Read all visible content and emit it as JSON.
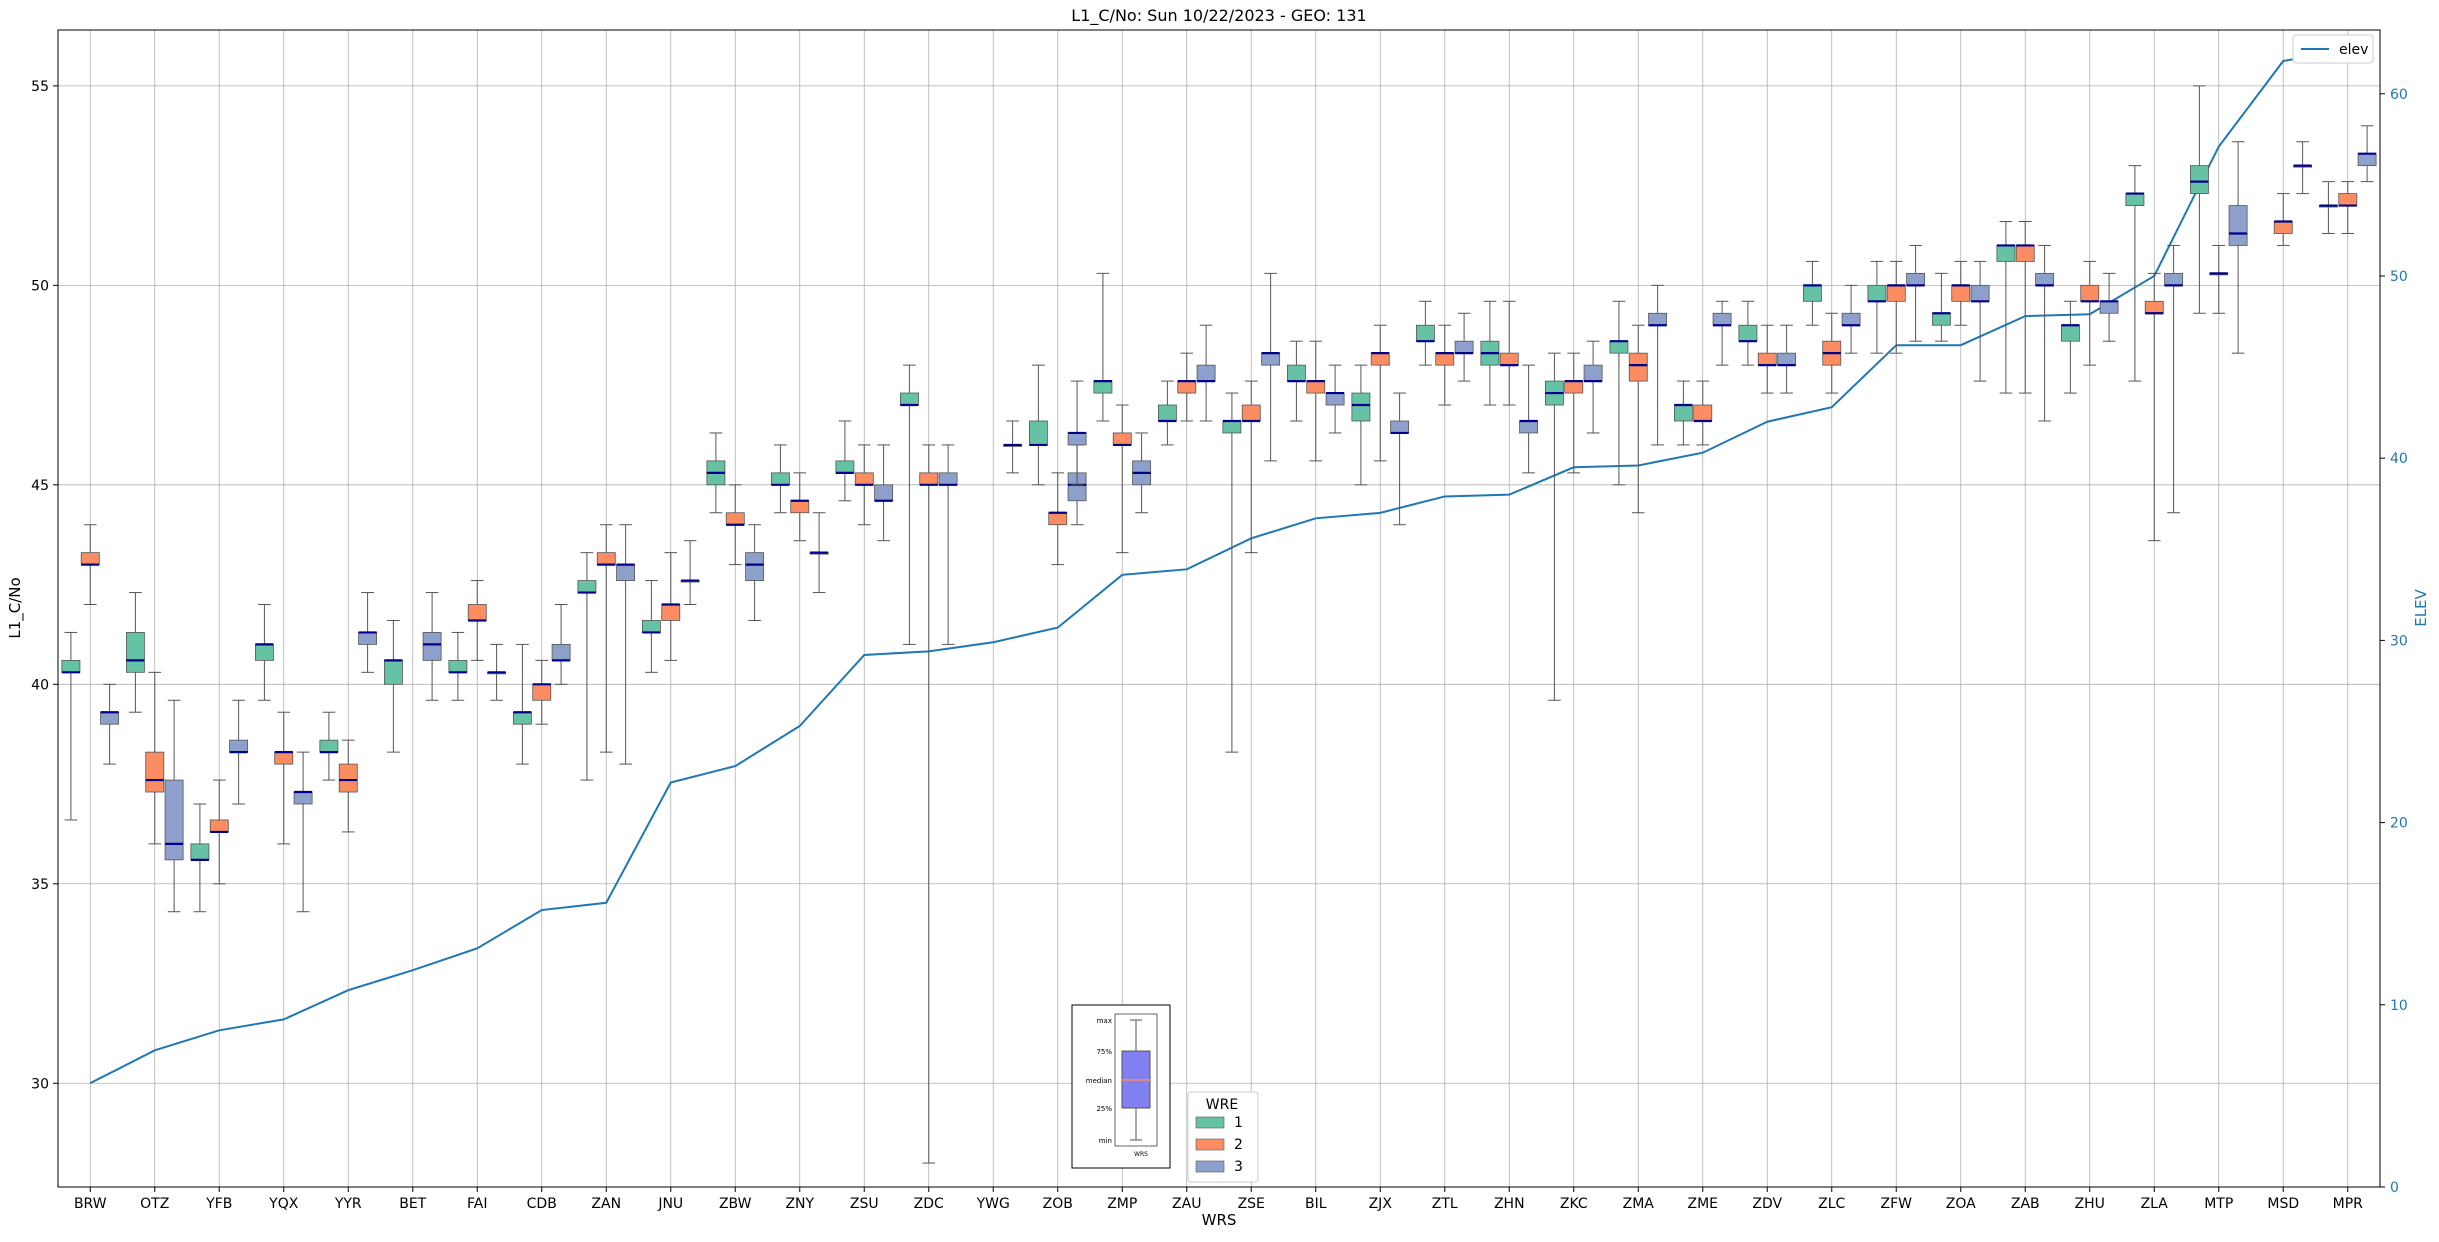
{
  "chart_data": {
    "type": "box",
    "title": "L1_C/No: Sun 10/22/2023 - GEO: 131",
    "xlabel": "WRS",
    "ylabel": "L1_C/No",
    "y2label": "ELEV",
    "ylim": [
      27.4,
      56.4
    ],
    "y2lim": [
      0,
      63.5
    ],
    "yticks": [
      30,
      35,
      40,
      45,
      50,
      55
    ],
    "y2ticks": [
      0,
      10,
      20,
      30,
      40,
      50,
      60
    ],
    "grid": true,
    "categories": [
      "BRW",
      "OTZ",
      "YFB",
      "YQX",
      "YYR",
      "BET",
      "FAI",
      "CDB",
      "ZAN",
      "JNU",
      "ZBW",
      "ZNY",
      "ZSU",
      "ZDC",
      "YWG",
      "ZOB",
      "ZMP",
      "ZAU",
      "ZSE",
      "BIL",
      "ZJX",
      "ZTL",
      "ZHN",
      "ZKC",
      "ZMA",
      "ZME",
      "ZDV",
      "ZLC",
      "ZFW",
      "ZOA",
      "ZAB",
      "ZHU",
      "ZLA",
      "MTP",
      "MSD",
      "MPR"
    ],
    "legend_wre": {
      "title": "WRE",
      "placement": "bottom-center",
      "entries": [
        "1",
        "2",
        "3"
      ]
    },
    "legend_elev": {
      "placement": "top-right",
      "entries": [
        "elev"
      ]
    },
    "series_colors": {
      "1": "#66c2a5",
      "2": "#fc8d62",
      "3": "#8da0cb",
      "elev": "#1f77b4",
      "median": "#00008b"
    },
    "boxes": [
      {
        "cat": "BRW",
        "wre": 1,
        "min": 36.6,
        "q1": 40.3,
        "med": 40.3,
        "q3": 40.6,
        "max": 41.3
      },
      {
        "cat": "BRW",
        "wre": 2,
        "min": 42.0,
        "q1": 43.0,
        "med": 43.0,
        "q3": 43.3,
        "max": 44.0
      },
      {
        "cat": "BRW",
        "wre": 3,
        "min": 38.0,
        "q1": 39.0,
        "med": 39.3,
        "q3": 39.3,
        "max": 40.0
      },
      {
        "cat": "OTZ",
        "wre": 1,
        "min": 39.3,
        "q1": 40.3,
        "med": 40.6,
        "q3": 41.3,
        "max": 42.3
      },
      {
        "cat": "OTZ",
        "wre": 2,
        "min": 36.0,
        "q1": 37.3,
        "med": 37.6,
        "q3": 38.3,
        "max": 40.3
      },
      {
        "cat": "OTZ",
        "wre": 3,
        "min": 34.3,
        "q1": 35.6,
        "med": 36.0,
        "q3": 37.6,
        "max": 39.6
      },
      {
        "cat": "YFB",
        "wre": 1,
        "min": 34.3,
        "q1": 35.6,
        "med": 35.6,
        "q3": 36.0,
        "max": 37.0
      },
      {
        "cat": "YFB",
        "wre": 2,
        "min": 35.0,
        "q1": 36.3,
        "med": 36.3,
        "q3": 36.6,
        "max": 37.6
      },
      {
        "cat": "YFB",
        "wre": 3,
        "min": 37.0,
        "q1": 38.3,
        "med": 38.3,
        "q3": 38.6,
        "max": 39.6
      },
      {
        "cat": "YQX",
        "wre": 1,
        "min": 39.6,
        "q1": 40.6,
        "med": 41.0,
        "q3": 41.0,
        "max": 42.0
      },
      {
        "cat": "YQX",
        "wre": 2,
        "min": 36.0,
        "q1": 38.0,
        "med": 38.3,
        "q3": 38.3,
        "max": 39.3
      },
      {
        "cat": "YQX",
        "wre": 3,
        "min": 34.3,
        "q1": 37.0,
        "med": 37.3,
        "q3": 37.3,
        "max": 38.3
      },
      {
        "cat": "YYR",
        "wre": 1,
        "min": 37.6,
        "q1": 38.3,
        "med": 38.3,
        "q3": 38.6,
        "max": 39.3
      },
      {
        "cat": "YYR",
        "wre": 2,
        "min": 36.3,
        "q1": 37.3,
        "med": 37.6,
        "q3": 38.0,
        "max": 38.6
      },
      {
        "cat": "YYR",
        "wre": 3,
        "min": 40.3,
        "q1": 41.0,
        "med": 41.3,
        "q3": 41.3,
        "max": 42.3
      },
      {
        "cat": "BET",
        "wre": 1,
        "min": 38.3,
        "q1": 40.0,
        "med": 40.6,
        "q3": 40.6,
        "max": 41.6
      },
      {
        "cat": "BET",
        "wre": 3,
        "min": 39.6,
        "q1": 40.6,
        "med": 41.0,
        "q3": 41.3,
        "max": 42.3
      },
      {
        "cat": "FAI",
        "wre": 1,
        "min": 39.6,
        "q1": 40.3,
        "med": 40.3,
        "q3": 40.6,
        "max": 41.3
      },
      {
        "cat": "FAI",
        "wre": 2,
        "min": 40.6,
        "q1": 41.6,
        "med": 41.6,
        "q3": 42.0,
        "max": 42.6
      },
      {
        "cat": "FAI",
        "wre": 3,
        "min": 39.6,
        "q1": 40.3,
        "med": 40.3,
        "q3": 40.3,
        "max": 41.0
      },
      {
        "cat": "CDB",
        "wre": 1,
        "min": 38.0,
        "q1": 39.0,
        "med": 39.3,
        "q3": 39.3,
        "max": 41.0
      },
      {
        "cat": "CDB",
        "wre": 2,
        "min": 39.0,
        "q1": 39.6,
        "med": 40.0,
        "q3": 40.0,
        "max": 40.6
      },
      {
        "cat": "CDB",
        "wre": 3,
        "min": 40.0,
        "q1": 40.6,
        "med": 40.6,
        "q3": 41.0,
        "max": 42.0
      },
      {
        "cat": "ZAN",
        "wre": 1,
        "min": 37.6,
        "q1": 42.3,
        "med": 42.3,
        "q3": 42.6,
        "max": 43.3
      },
      {
        "cat": "ZAN",
        "wre": 2,
        "min": 38.3,
        "q1": 43.0,
        "med": 43.0,
        "q3": 43.3,
        "max": 44.0
      },
      {
        "cat": "ZAN",
        "wre": 3,
        "min": 38.0,
        "q1": 42.6,
        "med": 43.0,
        "q3": 43.0,
        "max": 44.0
      },
      {
        "cat": "JNU",
        "wre": 1,
        "min": 40.3,
        "q1": 41.3,
        "med": 41.3,
        "q3": 41.6,
        "max": 42.6
      },
      {
        "cat": "JNU",
        "wre": 2,
        "min": 40.6,
        "q1": 41.6,
        "med": 42.0,
        "q3": 42.0,
        "max": 43.3
      },
      {
        "cat": "JNU",
        "wre": 3,
        "min": 42.0,
        "q1": 42.6,
        "med": 42.6,
        "q3": 42.6,
        "max": 43.6
      },
      {
        "cat": "ZBW",
        "wre": 1,
        "min": 44.3,
        "q1": 45.0,
        "med": 45.3,
        "q3": 45.6,
        "max": 46.3
      },
      {
        "cat": "ZBW",
        "wre": 2,
        "min": 43.0,
        "q1": 44.0,
        "med": 44.0,
        "q3": 44.3,
        "max": 45.0
      },
      {
        "cat": "ZBW",
        "wre": 3,
        "min": 41.6,
        "q1": 42.6,
        "med": 43.0,
        "q3": 43.3,
        "max": 44.0
      },
      {
        "cat": "ZNY",
        "wre": 1,
        "min": 44.3,
        "q1": 45.0,
        "med": 45.0,
        "q3": 45.3,
        "max": 46.0
      },
      {
        "cat": "ZNY",
        "wre": 2,
        "min": 43.6,
        "q1": 44.3,
        "med": 44.6,
        "q3": 44.6,
        "max": 45.3
      },
      {
        "cat": "ZNY",
        "wre": 3,
        "min": 42.3,
        "q1": 43.3,
        "med": 43.3,
        "q3": 43.3,
        "max": 44.3
      },
      {
        "cat": "ZSU",
        "wre": 1,
        "min": 44.6,
        "q1": 45.3,
        "med": 45.3,
        "q3": 45.6,
        "max": 46.6
      },
      {
        "cat": "ZSU",
        "wre": 2,
        "min": 44.0,
        "q1": 45.0,
        "med": 45.0,
        "q3": 45.3,
        "max": 46.0
      },
      {
        "cat": "ZSU",
        "wre": 3,
        "min": 43.6,
        "q1": 44.6,
        "med": 44.6,
        "q3": 45.0,
        "max": 46.0
      },
      {
        "cat": "ZDC",
        "wre": 1,
        "min": 41.0,
        "q1": 47.0,
        "med": 47.0,
        "q3": 47.3,
        "max": 48.0
      },
      {
        "cat": "ZDC",
        "wre": 2,
        "min": 28.0,
        "q1": 45.0,
        "med": 45.0,
        "q3": 45.3,
        "max": 46.0
      },
      {
        "cat": "ZDC",
        "wre": 3,
        "min": 41.0,
        "q1": 45.0,
        "med": 45.0,
        "q3": 45.3,
        "max": 46.0
      },
      {
        "cat": "YWG",
        "wre": 3,
        "min": 45.3,
        "q1": 46.0,
        "med": 46.0,
        "q3": 46.0,
        "max": 46.6
      },
      {
        "cat": "ZOB",
        "wre": 1,
        "min": 45.0,
        "q1": 46.0,
        "med": 46.0,
        "q3": 46.6,
        "max": 48.0
      },
      {
        "cat": "ZOB",
        "wre": 2,
        "min": 43.0,
        "q1": 44.0,
        "med": 44.3,
        "q3": 44.3,
        "max": 45.3
      },
      {
        "cat": "ZOB",
        "wre": 3,
        "min": 44.0,
        "q1": 44.6,
        "med": 45.0,
        "q3": 45.3,
        "max": 46.0
      },
      {
        "cat": "ZOB",
        "wre": 3,
        "min": 45.0,
        "q1": 46.0,
        "med": 46.3,
        "q3": 46.3,
        "max": 47.6
      },
      {
        "cat": "ZMP",
        "wre": 1,
        "min": 46.6,
        "q1": 47.3,
        "med": 47.6,
        "q3": 47.6,
        "max": 50.3
      },
      {
        "cat": "ZMP",
        "wre": 2,
        "min": 43.3,
        "q1": 46.0,
        "med": 46.0,
        "q3": 46.3,
        "max": 47.0
      },
      {
        "cat": "ZMP",
        "wre": 3,
        "min": 44.3,
        "q1": 45.0,
        "med": 45.3,
        "q3": 45.6,
        "max": 46.3
      },
      {
        "cat": "ZAU",
        "wre": 1,
        "min": 46.0,
        "q1": 46.6,
        "med": 46.6,
        "q3": 47.0,
        "max": 47.6
      },
      {
        "cat": "ZAU",
        "wre": 2,
        "min": 46.6,
        "q1": 47.3,
        "med": 47.6,
        "q3": 47.6,
        "max": 48.3
      },
      {
        "cat": "ZAU",
        "wre": 3,
        "min": 46.6,
        "q1": 47.6,
        "med": 47.6,
        "q3": 48.0,
        "max": 49.0
      },
      {
        "cat": "ZSE",
        "wre": 1,
        "min": 38.3,
        "q1": 46.3,
        "med": 46.6,
        "q3": 46.6,
        "max": 47.3
      },
      {
        "cat": "ZSE",
        "wre": 2,
        "min": 43.3,
        "q1": 46.6,
        "med": 46.6,
        "q3": 47.0,
        "max": 47.6
      },
      {
        "cat": "ZSE",
        "wre": 3,
        "min": 45.6,
        "q1": 48.0,
        "med": 48.3,
        "q3": 48.3,
        "max": 50.3
      },
      {
        "cat": "BIL",
        "wre": 1,
        "min": 46.6,
        "q1": 47.6,
        "med": 47.6,
        "q3": 48.0,
        "max": 48.6
      },
      {
        "cat": "BIL",
        "wre": 2,
        "min": 45.6,
        "q1": 47.3,
        "med": 47.6,
        "q3": 47.6,
        "max": 48.6
      },
      {
        "cat": "BIL",
        "wre": 3,
        "min": 46.3,
        "q1": 47.0,
        "med": 47.3,
        "q3": 47.3,
        "max": 48.0
      },
      {
        "cat": "ZJX",
        "wre": 1,
        "min": 45.0,
        "q1": 46.6,
        "med": 47.0,
        "q3": 47.3,
        "max": 48.0
      },
      {
        "cat": "ZJX",
        "wre": 2,
        "min": 45.6,
        "q1": 48.0,
        "med": 48.3,
        "q3": 48.3,
        "max": 49.0
      },
      {
        "cat": "ZJX",
        "wre": 3,
        "min": 44.0,
        "q1": 46.3,
        "med": 46.3,
        "q3": 46.6,
        "max": 47.3
      },
      {
        "cat": "ZTL",
        "wre": 1,
        "min": 48.0,
        "q1": 48.6,
        "med": 48.6,
        "q3": 49.0,
        "max": 49.6
      },
      {
        "cat": "ZTL",
        "wre": 2,
        "min": 47.0,
        "q1": 48.0,
        "med": 48.3,
        "q3": 48.3,
        "max": 49.0
      },
      {
        "cat": "ZTL",
        "wre": 3,
        "min": 47.6,
        "q1": 48.3,
        "med": 48.3,
        "q3": 48.6,
        "max": 49.3
      },
      {
        "cat": "ZHN",
        "wre": 1,
        "min": 47.0,
        "q1": 48.0,
        "med": 48.3,
        "q3": 48.6,
        "max": 49.6
      },
      {
        "cat": "ZHN",
        "wre": 2,
        "min": 47.0,
        "q1": 48.0,
        "med": 48.0,
        "q3": 48.3,
        "max": 49.6
      },
      {
        "cat": "ZHN",
        "wre": 3,
        "min": 45.3,
        "q1": 46.3,
        "med": 46.6,
        "q3": 46.6,
        "max": 48.0
      },
      {
        "cat": "ZKC",
        "wre": 1,
        "min": 39.6,
        "q1": 47.0,
        "med": 47.3,
        "q3": 47.6,
        "max": 48.3
      },
      {
        "cat": "ZKC",
        "wre": 2,
        "min": 45.3,
        "q1": 47.3,
        "med": 47.6,
        "q3": 47.6,
        "max": 48.3
      },
      {
        "cat": "ZKC",
        "wre": 3,
        "min": 46.3,
        "q1": 47.6,
        "med": 47.6,
        "q3": 48.0,
        "max": 48.6
      },
      {
        "cat": "ZMA",
        "wre": 1,
        "min": 45.0,
        "q1": 48.3,
        "med": 48.6,
        "q3": 48.6,
        "max": 49.6
      },
      {
        "cat": "ZMA",
        "wre": 2,
        "min": 44.3,
        "q1": 47.6,
        "med": 48.0,
        "q3": 48.3,
        "max": 49.0
      },
      {
        "cat": "ZMA",
        "wre": 3,
        "min": 46.0,
        "q1": 49.0,
        "med": 49.0,
        "q3": 49.3,
        "max": 50.0
      },
      {
        "cat": "ZME",
        "wre": 1,
        "min": 46.0,
        "q1": 46.6,
        "med": 47.0,
        "q3": 47.0,
        "max": 47.6
      },
      {
        "cat": "ZME",
        "wre": 2,
        "min": 46.0,
        "q1": 46.6,
        "med": 46.6,
        "q3": 47.0,
        "max": 47.6
      },
      {
        "cat": "ZME",
        "wre": 3,
        "min": 48.0,
        "q1": 49.0,
        "med": 49.0,
        "q3": 49.3,
        "max": 49.6
      },
      {
        "cat": "ZDV",
        "wre": 1,
        "min": 48.0,
        "q1": 48.6,
        "med": 48.6,
        "q3": 49.0,
        "max": 49.6
      },
      {
        "cat": "ZDV",
        "wre": 2,
        "min": 47.3,
        "q1": 48.0,
        "med": 48.0,
        "q3": 48.3,
        "max": 49.0
      },
      {
        "cat": "ZDV",
        "wre": 3,
        "min": 47.3,
        "q1": 48.0,
        "med": 48.0,
        "q3": 48.3,
        "max": 49.0
      },
      {
        "cat": "ZLC",
        "wre": 1,
        "min": 49.0,
        "q1": 49.6,
        "med": 50.0,
        "q3": 50.0,
        "max": 50.6
      },
      {
        "cat": "ZLC",
        "wre": 2,
        "min": 47.3,
        "q1": 48.0,
        "med": 48.3,
        "q3": 48.6,
        "max": 49.3
      },
      {
        "cat": "ZLC",
        "wre": 3,
        "min": 48.3,
        "q1": 49.0,
        "med": 49.0,
        "q3": 49.3,
        "max": 50.0
      },
      {
        "cat": "ZFW",
        "wre": 1,
        "min": 48.3,
        "q1": 49.6,
        "med": 49.6,
        "q3": 50.0,
        "max": 50.6
      },
      {
        "cat": "ZFW",
        "wre": 2,
        "min": 48.3,
        "q1": 49.6,
        "med": 50.0,
        "q3": 50.0,
        "max": 50.6
      },
      {
        "cat": "ZFW",
        "wre": 3,
        "min": 48.6,
        "q1": 50.0,
        "med": 50.0,
        "q3": 50.3,
        "max": 51.0
      },
      {
        "cat": "ZOA",
        "wre": 1,
        "min": 48.6,
        "q1": 49.0,
        "med": 49.3,
        "q3": 49.3,
        "max": 50.3
      },
      {
        "cat": "ZOA",
        "wre": 2,
        "min": 49.0,
        "q1": 49.6,
        "med": 50.0,
        "q3": 50.0,
        "max": 50.6
      },
      {
        "cat": "ZOA",
        "wre": 3,
        "min": 47.6,
        "q1": 49.6,
        "med": 49.6,
        "q3": 50.0,
        "max": 50.6
      },
      {
        "cat": "ZAB",
        "wre": 1,
        "min": 47.3,
        "q1": 50.6,
        "med": 51.0,
        "q3": 51.0,
        "max": 51.6
      },
      {
        "cat": "ZAB",
        "wre": 2,
        "min": 47.3,
        "q1": 50.6,
        "med": 51.0,
        "q3": 51.0,
        "max": 51.6
      },
      {
        "cat": "ZAB",
        "wre": 3,
        "min": 46.6,
        "q1": 50.0,
        "med": 50.0,
        "q3": 50.3,
        "max": 51.0
      },
      {
        "cat": "ZHU",
        "wre": 1,
        "min": 47.3,
        "q1": 48.6,
        "med": 49.0,
        "q3": 49.0,
        "max": 49.6
      },
      {
        "cat": "ZHU",
        "wre": 2,
        "min": 48.0,
        "q1": 49.6,
        "med": 49.6,
        "q3": 50.0,
        "max": 50.6
      },
      {
        "cat": "ZHU",
        "wre": 3,
        "min": 48.6,
        "q1": 49.3,
        "med": 49.6,
        "q3": 49.6,
        "max": 50.3
      },
      {
        "cat": "ZLA",
        "wre": 1,
        "min": 47.6,
        "q1": 52.0,
        "med": 52.3,
        "q3": 52.3,
        "max": 53.0
      },
      {
        "cat": "ZLA",
        "wre": 2,
        "min": 43.6,
        "q1": 49.3,
        "med": 49.3,
        "q3": 49.6,
        "max": 50.3
      },
      {
        "cat": "ZLA",
        "wre": 3,
        "min": 44.3,
        "q1": 50.0,
        "med": 50.0,
        "q3": 50.3,
        "max": 51.0
      },
      {
        "cat": "MTP",
        "wre": 1,
        "min": 49.3,
        "q1": 52.3,
        "med": 52.6,
        "q3": 53.0,
        "max": 55.0
      },
      {
        "cat": "MTP",
        "wre": 3,
        "min": 48.3,
        "q1": 51.0,
        "med": 51.3,
        "q3": 52.0,
        "max": 53.6
      },
      {
        "cat": "MTP",
        "wre": 3,
        "min": 49.3,
        "q1": 50.3,
        "med": 50.3,
        "q3": 50.3,
        "max": 51.0
      },
      {
        "cat": "MSD",
        "wre": 2,
        "min": 51.0,
        "q1": 51.3,
        "med": 51.6,
        "q3": 51.6,
        "max": 52.3
      },
      {
        "cat": "MSD",
        "wre": 3,
        "min": 52.3,
        "q1": 53.0,
        "med": 53.0,
        "q3": 53.0,
        "max": 53.6
      },
      {
        "cat": "MPR",
        "wre": 1,
        "min": 51.3,
        "q1": 52.0,
        "med": 52.0,
        "q3": 52.0,
        "max": 52.6
      },
      {
        "cat": "MPR",
        "wre": 2,
        "min": 51.3,
        "q1": 52.0,
        "med": 52.0,
        "q3": 52.3,
        "max": 52.6
      },
      {
        "cat": "MPR",
        "wre": 3,
        "min": 52.6,
        "q1": 53.0,
        "med": 53.3,
        "q3": 53.3,
        "max": 54.0
      }
    ],
    "elev": [
      5.7,
      7.5,
      8.6,
      9.2,
      10.8,
      11.9,
      13.1,
      15.2,
      15.6,
      22.2,
      23.1,
      25.3,
      29.2,
      29.4,
      29.9,
      30.7,
      33.6,
      33.9,
      35.6,
      36.7,
      37.0,
      37.9,
      38.0,
      39.5,
      39.6,
      40.3,
      42.0,
      42.8,
      46.2,
      46.2,
      47.8,
      47.9,
      50.0,
      57.1,
      61.8,
      62.4
    ],
    "inset_legend": {
      "labels": [
        "max",
        "75%",
        "median",
        "25%",
        "min"
      ],
      "xlabel": "WRS"
    }
  }
}
